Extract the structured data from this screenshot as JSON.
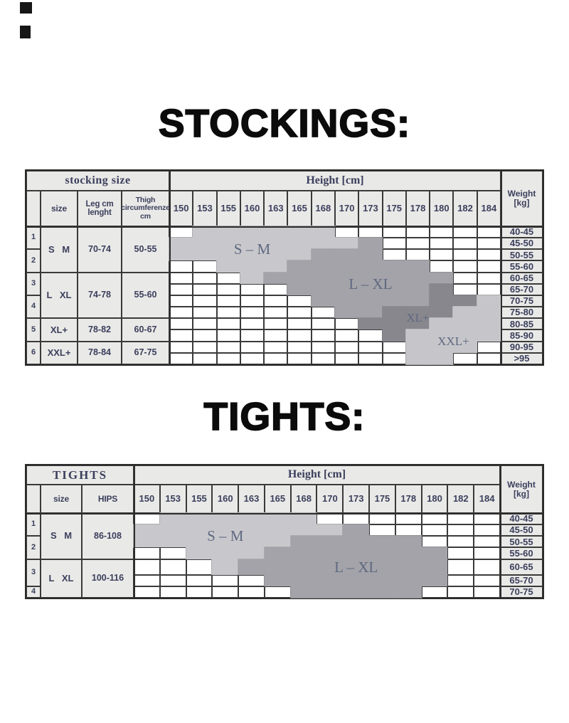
{
  "page": {
    "title_stockings": "STOCKINGS:",
    "title_tights": "TIGHTS:"
  },
  "legend": {
    "0": "none",
    "1": "S-M",
    "2": "L-XL",
    "3": "XL+",
    "4": "XXL+"
  },
  "colors": {
    "region_sm": "#c8c8cc",
    "region_lxl": "#a3a3a9",
    "region_xlplus": "#87878d",
    "region_xxlplus": "#c6c6ca",
    "header_bg": "#e9e9e7",
    "border": "#3a3a3a",
    "text": "#3b3f5c",
    "region_label_text": "#5f6980",
    "title_text": "#0b0b0b"
  },
  "stockings_table": {
    "corner_header": "stocking size",
    "height_header": "Height [cm]",
    "weight_header_lines": [
      "Weight",
      "[kg]"
    ],
    "col_headers": [
      {
        "lines": [
          "size"
        ],
        "fs": 12
      },
      {
        "lines": [
          "Leg cm",
          "lenght"
        ],
        "fs": 11.5
      },
      {
        "lines": [
          "Thigh",
          "circumferenze",
          "cm"
        ],
        "fs": 10.5
      }
    ],
    "heights": [
      "150",
      "153",
      "155",
      "160",
      "163",
      "165",
      "168",
      "170",
      "173",
      "175",
      "178",
      "180",
      "182",
      "184"
    ],
    "weights": [
      "40-45",
      "45-50",
      "50-55",
      "55-60",
      "60-65",
      "65-70",
      "70-75",
      "75-80",
      "80-85",
      "85-90",
      "90-95",
      ">95"
    ],
    "size_rows": [
      {
        "row_start": 1,
        "row_span": 4,
        "nums": [
          {
            "t": "1",
            "span": 2
          },
          {
            "t": "2",
            "span": 2
          }
        ],
        "cells": [
          "S M",
          "70-74",
          "50-55"
        ]
      },
      {
        "row_start": 5,
        "row_span": 4,
        "nums": [
          {
            "t": "3",
            "span": 2
          },
          {
            "t": "4",
            "span": 2
          }
        ],
        "cells": [
          "L XL",
          "74-78",
          "55-60"
        ]
      },
      {
        "row_start": 9,
        "row_span": 2,
        "nums": [
          {
            "t": "5",
            "span": 2
          }
        ],
        "cells": [
          "XL+",
          "78-82",
          "60-67"
        ]
      },
      {
        "row_start": 11,
        "row_span": 2,
        "nums": [
          {
            "t": "6",
            "span": 2
          }
        ],
        "cells": [
          "XXL+",
          "78-84",
          "67-75"
        ]
      }
    ],
    "matrix": [
      [
        0,
        1,
        1,
        1,
        1,
        1,
        1,
        0,
        0,
        0,
        0,
        0,
        0,
        0
      ],
      [
        1,
        1,
        1,
        1,
        1,
        1,
        1,
        1,
        2,
        0,
        0,
        0,
        0,
        0
      ],
      [
        1,
        1,
        1,
        1,
        1,
        1,
        2,
        2,
        2,
        0,
        0,
        0,
        0,
        0
      ],
      [
        0,
        0,
        1,
        1,
        1,
        2,
        2,
        2,
        2,
        2,
        2,
        0,
        0,
        0
      ],
      [
        0,
        0,
        0,
        1,
        2,
        2,
        2,
        2,
        2,
        2,
        2,
        2,
        0,
        0
      ],
      [
        0,
        0,
        0,
        0,
        0,
        2,
        2,
        2,
        2,
        2,
        2,
        3,
        0,
        0
      ],
      [
        0,
        0,
        0,
        0,
        0,
        0,
        2,
        2,
        2,
        2,
        2,
        3,
        3,
        4
      ],
      [
        0,
        0,
        0,
        0,
        0,
        0,
        0,
        2,
        2,
        3,
        3,
        3,
        4,
        4
      ],
      [
        0,
        0,
        0,
        0,
        0,
        0,
        0,
        0,
        3,
        3,
        3,
        4,
        4,
        4
      ],
      [
        0,
        0,
        0,
        0,
        0,
        0,
        0,
        0,
        0,
        3,
        4,
        4,
        4,
        4
      ],
      [
        0,
        0,
        0,
        0,
        0,
        0,
        0,
        0,
        0,
        0,
        4,
        4,
        4,
        0
      ],
      [
        0,
        0,
        0,
        0,
        0,
        0,
        0,
        0,
        0,
        0,
        4,
        4,
        0,
        0
      ]
    ],
    "labels": [
      {
        "text": "S – M",
        "col": 3,
        "colspan": 3,
        "row": 2,
        "rowspan": 2,
        "fs": 21
      },
      {
        "text": "L – XL",
        "col": 8,
        "colspan": 3,
        "row": 5,
        "rowspan": 2,
        "fs": 21
      },
      {
        "text": "XL+",
        "col": 10,
        "colspan": 3,
        "row": 8,
        "rowspan": 2,
        "fs": 17
      },
      {
        "text": "XXL+",
        "col": 12,
        "colspan": 2,
        "row": 10,
        "rowspan": 2,
        "fs": 17
      }
    ]
  },
  "tights_table": {
    "corner_header": "TIGHTS",
    "height_header": "Height [cm]",
    "weight_header_lines": [
      "Weight",
      "[kg]"
    ],
    "col_headers": [
      {
        "lines": [
          "size"
        ],
        "fs": 12
      },
      {
        "lines": [
          "HIPS"
        ],
        "fs": 12
      }
    ],
    "heights": [
      "150",
      "153",
      "155",
      "160",
      "163",
      "165",
      "168",
      "170",
      "173",
      "175",
      "178",
      "180",
      "182",
      "184"
    ],
    "weights": [
      "40-45",
      "45-50",
      "50-55",
      "55-60",
      "60-65",
      "65-70",
      "70-75"
    ],
    "size_rows": [
      {
        "row_start": 1,
        "row_span": 4,
        "nums": [
          {
            "t": "1",
            "span": 2
          },
          {
            "t": "2",
            "span": 2
          }
        ],
        "cells": [
          "S M",
          "86-108"
        ]
      },
      {
        "row_start": 5,
        "row_span": 3,
        "nums": [
          {
            "t": "3",
            "span": 2
          },
          {
            "t": "4",
            "span": 1
          }
        ],
        "cells": [
          "L XL",
          "100-116"
        ]
      }
    ],
    "matrix": [
      [
        0,
        1,
        1,
        1,
        1,
        1,
        1,
        0,
        0,
        0,
        0,
        0,
        0,
        0
      ],
      [
        1,
        1,
        1,
        1,
        1,
        1,
        1,
        1,
        2,
        0,
        0,
        0,
        0,
        0
      ],
      [
        1,
        1,
        1,
        1,
        1,
        1,
        2,
        2,
        2,
        2,
        2,
        0,
        0,
        0
      ],
      [
        0,
        0,
        1,
        1,
        1,
        2,
        2,
        2,
        2,
        2,
        2,
        2,
        0,
        0
      ],
      [
        0,
        0,
        0,
        1,
        2,
        2,
        2,
        2,
        2,
        2,
        2,
        2,
        0,
        0
      ],
      [
        0,
        0,
        0,
        0,
        0,
        2,
        2,
        2,
        2,
        2,
        2,
        2,
        0,
        0
      ],
      [
        0,
        0,
        0,
        0,
        0,
        0,
        2,
        2,
        2,
        2,
        2,
        0,
        0,
        0
      ]
    ],
    "labels": [
      {
        "text": "S – M",
        "col": 3,
        "colspan": 3,
        "row": 2,
        "rowspan": 2,
        "fs": 21
      },
      {
        "text": "L – XL",
        "col": 8,
        "colspan": 3,
        "row": 5,
        "rowspan": 1,
        "fs": 21
      }
    ]
  }
}
